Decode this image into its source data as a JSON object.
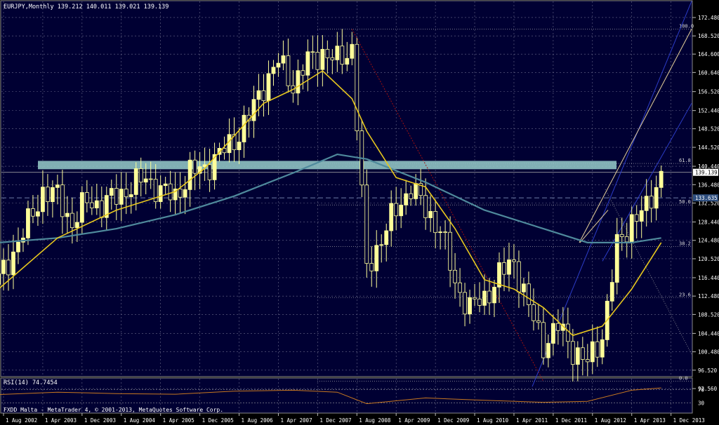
{
  "header": {
    "symbol_info": "EURJPY,Monthly  139.212 140.011 139.021 139.139"
  },
  "rsi": {
    "label": "RSI(14) 74.7454",
    "levels": [
      "70",
      "30"
    ],
    "value": 74.7454
  },
  "footer": {
    "copyright": "FXDD Malta - MetaTrader 4, © 2001-2013, MetaQuotes Software Corp."
  },
  "price_axis": {
    "ticks": [
      "172.480",
      "168.520",
      "164.600",
      "160.640",
      "156.520",
      "152.440",
      "148.520",
      "144.520",
      "140.440",
      "136.480",
      "132.520",
      "128.440",
      "124.480",
      "120.520",
      "116.440",
      "112.480",
      "108.520",
      "104.440",
      "100.480",
      "96.520",
      "92.560"
    ],
    "current_price_label": "139.139",
    "dashed_level_label": "133.635"
  },
  "time_axis": {
    "labels": [
      "1 Aug 2002",
      "1 Apr 2003",
      "1 Dec 2003",
      "1 Aug 2004",
      "1 Apr 2005",
      "1 Dec 2005",
      "1 Aug 2006",
      "1 Apr 2007",
      "1 Dec 2007",
      "1 Aug 2008",
      "1 Apr 2009",
      "1 Dec 2009",
      "1 Aug 2010",
      "1 Apr 2011",
      "1 Dec 2011",
      "1 Aug 2012",
      "1 Apr 2013",
      "1 Dec 2013"
    ]
  },
  "fibonacci": {
    "levels": [
      {
        "label": "100.0",
        "price": 169.97
      },
      {
        "label": "61.8",
        "price": 141.05
      },
      {
        "label": "50.0",
        "price": 132.11
      },
      {
        "label": "38.2",
        "price": 123.18
      },
      {
        "label": "23.6",
        "price": 112.13
      },
      {
        "label": "0.0",
        "price": 94.12
      }
    ]
  },
  "colors": {
    "background": "#000000",
    "plot_background": "#000033",
    "candles": "#FFFF99",
    "ma_fast": "#E8C81E",
    "ma_slow": "#4F8A9C",
    "resistance_band": "#8FC2C2",
    "pitchfork": "#2C3CC8",
    "pitchfork_median": "#E8D29A",
    "fib": "#C0C0C0",
    "rsi_line": "#C87820",
    "trend_red": "#A01010",
    "text": "#FFFFFF"
  },
  "chart_data": {
    "type": "candlestick",
    "symbol": "EURJPY",
    "timeframe": "Monthly",
    "ylim": [
      90.5,
      174.5
    ],
    "last": {
      "open": 139.212,
      "high": 140.011,
      "low": 139.021,
      "close": 139.139
    },
    "closes_quarterly": [
      {
        "date": "2002-07",
        "close": 116
      },
      {
        "date": "2002-10",
        "close": 122
      },
      {
        "date": "2003-01",
        "close": 128
      },
      {
        "date": "2003-04",
        "close": 135
      },
      {
        "date": "2003-07",
        "close": 134
      },
      {
        "date": "2003-10",
        "close": 128
      },
      {
        "date": "2004-01",
        "close": 133
      },
      {
        "date": "2004-04",
        "close": 132
      },
      {
        "date": "2004-07",
        "close": 134
      },
      {
        "date": "2004-10",
        "close": 136
      },
      {
        "date": "2005-01",
        "close": 138
      },
      {
        "date": "2005-04",
        "close": 135
      },
      {
        "date": "2005-07",
        "close": 134
      },
      {
        "date": "2005-10",
        "close": 139
      },
      {
        "date": "2006-01",
        "close": 140
      },
      {
        "date": "2006-04",
        "close": 143
      },
      {
        "date": "2006-07",
        "close": 146
      },
      {
        "date": "2006-10",
        "close": 151
      },
      {
        "date": "2007-01",
        "close": 158
      },
      {
        "date": "2007-04",
        "close": 163
      },
      {
        "date": "2007-07",
        "close": 158
      },
      {
        "date": "2007-10",
        "close": 163
      },
      {
        "date": "2008-01",
        "close": 165
      },
      {
        "date": "2008-04",
        "close": 163
      },
      {
        "date": "2008-07",
        "close": 166
      },
      {
        "date": "2008-10",
        "close": 118
      },
      {
        "date": "2009-01",
        "close": 125
      },
      {
        "date": "2009-04",
        "close": 131
      },
      {
        "date": "2009-07",
        "close": 136
      },
      {
        "date": "2009-10",
        "close": 131
      },
      {
        "date": "2010-01",
        "close": 127
      },
      {
        "date": "2010-04",
        "close": 115
      },
      {
        "date": "2010-07",
        "close": 110
      },
      {
        "date": "2010-10",
        "close": 112
      },
      {
        "date": "2011-01",
        "close": 117
      },
      {
        "date": "2011-04",
        "close": 120
      },
      {
        "date": "2011-07",
        "close": 110
      },
      {
        "date": "2011-10",
        "close": 102
      },
      {
        "date": "2012-01",
        "close": 106
      },
      {
        "date": "2012-04",
        "close": 101
      },
      {
        "date": "2012-07",
        "close": 98
      },
      {
        "date": "2012-10",
        "close": 104
      },
      {
        "date": "2013-01",
        "close": 123
      },
      {
        "date": "2013-04",
        "close": 129
      },
      {
        "date": "2013-07",
        "close": 131
      },
      {
        "date": "2013-10",
        "close": 139.139
      }
    ],
    "ma_fast": [
      {
        "date": "2002-07",
        "value": 114
      },
      {
        "date": "2003-07",
        "value": 125
      },
      {
        "date": "2004-07",
        "value": 131
      },
      {
        "date": "2005-07",
        "value": 135
      },
      {
        "date": "2006-01",
        "value": 140
      },
      {
        "date": "2006-07",
        "value": 147
      },
      {
        "date": "2007-01",
        "value": 154
      },
      {
        "date": "2007-07",
        "value": 157
      },
      {
        "date": "2008-01",
        "value": 161
      },
      {
        "date": "2008-07",
        "value": 155
      },
      {
        "date": "2008-10",
        "value": 148
      },
      {
        "date": "2009-04",
        "value": 138
      },
      {
        "date": "2009-10",
        "value": 136
      },
      {
        "date": "2010-04",
        "value": 127
      },
      {
        "date": "2010-10",
        "value": 116
      },
      {
        "date": "2011-04",
        "value": 114
      },
      {
        "date": "2011-10",
        "value": 110
      },
      {
        "date": "2012-04",
        "value": 104
      },
      {
        "date": "2012-10",
        "value": 106
      },
      {
        "date": "2013-04",
        "value": 114
      },
      {
        "date": "2013-10",
        "value": 124
      }
    ],
    "ma_slow": [
      {
        "date": "2002-07",
        "value": 124
      },
      {
        "date": "2003-07",
        "value": 125
      },
      {
        "date": "2004-07",
        "value": 127
      },
      {
        "date": "2005-07",
        "value": 130
      },
      {
        "date": "2006-07",
        "value": 134
      },
      {
        "date": "2007-07",
        "value": 139
      },
      {
        "date": "2008-04",
        "value": 143
      },
      {
        "date": "2008-10",
        "value": 142
      },
      {
        "date": "2009-10",
        "value": 137
      },
      {
        "date": "2010-10",
        "value": 131
      },
      {
        "date": "2011-10",
        "value": 127
      },
      {
        "date": "2012-07",
        "value": 124
      },
      {
        "date": "2013-04",
        "value": 124
      },
      {
        "date": "2013-10",
        "value": 125
      }
    ],
    "rsi_series": [
      {
        "date": "2002-07",
        "value": 55
      },
      {
        "date": "2003-07",
        "value": 62
      },
      {
        "date": "2004-07",
        "value": 58
      },
      {
        "date": "2005-07",
        "value": 56
      },
      {
        "date": "2006-07",
        "value": 65
      },
      {
        "date": "2007-07",
        "value": 68
      },
      {
        "date": "2008-04",
        "value": 62
      },
      {
        "date": "2008-10",
        "value": 28
      },
      {
        "date": "2009-10",
        "value": 45
      },
      {
        "date": "2010-10",
        "value": 38
      },
      {
        "date": "2011-10",
        "value": 32
      },
      {
        "date": "2012-07",
        "value": 35
      },
      {
        "date": "2013-04",
        "value": 68
      },
      {
        "date": "2013-10",
        "value": 74.7454
      }
    ],
    "resistance_zone": [
      139.8,
      141.6
    ],
    "current_price": 139.139,
    "dashed_level": 133.635
  }
}
